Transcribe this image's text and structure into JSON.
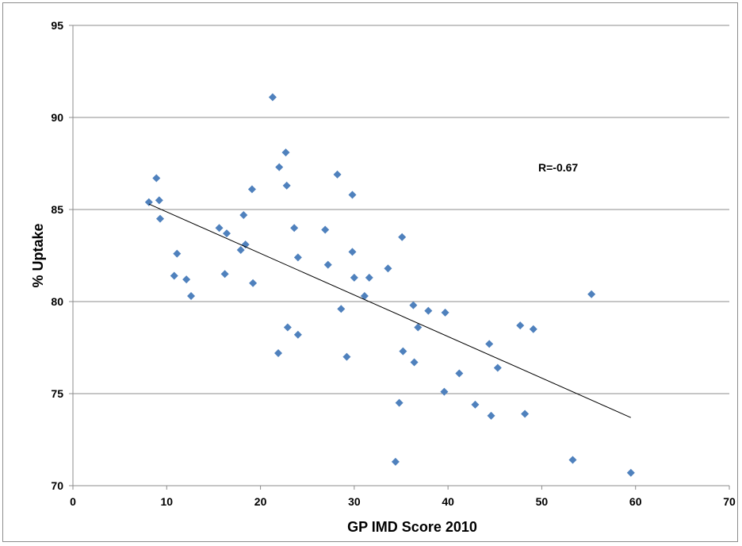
{
  "chart_data": {
    "type": "scatter",
    "xlabel": "GP IMD Score 2010",
    "ylabel": "% Uptake",
    "xlim": [
      0,
      70
    ],
    "ylim": [
      70,
      95
    ],
    "xticks": [
      "0",
      "10",
      "20",
      "30",
      "40",
      "50",
      "60",
      "70"
    ],
    "yticks": [
      "70",
      "75",
      "80",
      "85",
      "90",
      "95"
    ],
    "grid": "horizontal",
    "annotation": "R=-0.67",
    "marker_color": "#4f81bd",
    "trendline_color": "#000000",
    "trendline": {
      "x": [
        8.1,
        59.5
      ],
      "y": [
        85.3,
        73.7
      ]
    },
    "points": [
      [
        8.1,
        85.4
      ],
      [
        8.9,
        86.7
      ],
      [
        9.2,
        85.5
      ],
      [
        9.3,
        84.5
      ],
      [
        10.8,
        81.4
      ],
      [
        11.1,
        82.6
      ],
      [
        12.1,
        81.2
      ],
      [
        12.6,
        80.3
      ],
      [
        15.6,
        84.0
      ],
      [
        16.2,
        81.5
      ],
      [
        16.4,
        83.7
      ],
      [
        17.9,
        82.8
      ],
      [
        18.2,
        84.7
      ],
      [
        18.4,
        83.1
      ],
      [
        19.1,
        86.1
      ],
      [
        19.2,
        81.0
      ],
      [
        21.3,
        91.1
      ],
      [
        21.9,
        77.2
      ],
      [
        22.0,
        87.3
      ],
      [
        22.7,
        88.1
      ],
      [
        22.8,
        86.3
      ],
      [
        22.9,
        78.6
      ],
      [
        23.6,
        84.0
      ],
      [
        24.0,
        82.4
      ],
      [
        24.0,
        78.2
      ],
      [
        26.9,
        83.9
      ],
      [
        27.2,
        82.0
      ],
      [
        28.2,
        86.9
      ],
      [
        28.6,
        79.6
      ],
      [
        29.2,
        77.0
      ],
      [
        29.8,
        85.8
      ],
      [
        29.8,
        82.7
      ],
      [
        30.0,
        81.3
      ],
      [
        31.1,
        80.3
      ],
      [
        31.6,
        81.3
      ],
      [
        33.6,
        81.8
      ],
      [
        34.4,
        71.3
      ],
      [
        34.8,
        74.5
      ],
      [
        35.1,
        83.5
      ],
      [
        35.2,
        77.3
      ],
      [
        36.3,
        79.8
      ],
      [
        36.4,
        76.7
      ],
      [
        36.8,
        78.6
      ],
      [
        37.9,
        79.5
      ],
      [
        39.6,
        75.1
      ],
      [
        39.7,
        79.4
      ],
      [
        41.2,
        76.1
      ],
      [
        42.9,
        74.4
      ],
      [
        44.4,
        77.7
      ],
      [
        44.6,
        73.8
      ],
      [
        45.3,
        76.4
      ],
      [
        47.7,
        78.7
      ],
      [
        48.2,
        73.9
      ],
      [
        49.1,
        78.5
      ],
      [
        53.3,
        71.4
      ],
      [
        55.3,
        80.4
      ],
      [
        59.5,
        70.7
      ]
    ]
  }
}
